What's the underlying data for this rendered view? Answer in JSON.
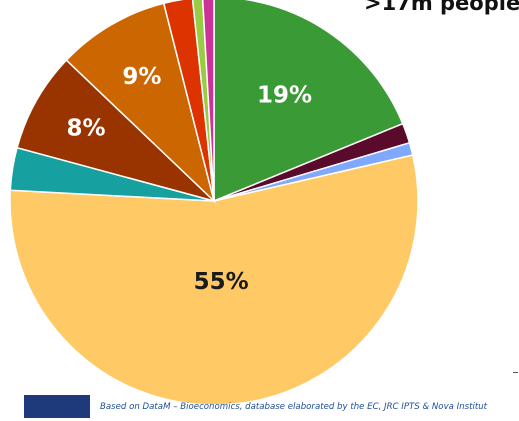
{
  "headline": ">17m people",
  "source_note": "Based on DataM – Bioeconomics, database elaborated by the EC, JRC IPTS & Nova Institut",
  "chart_data": {
    "type": "pie",
    "title": "",
    "start_angle_deg": 0,
    "direction": "clockwise",
    "legend": "none",
    "slices": [
      {
        "value": 19.0,
        "label": "19%",
        "color": "#3a9a35",
        "label_color": "#ffffff"
      },
      {
        "value": 1.6,
        "label": "",
        "color": "#5a0a2a"
      },
      {
        "value": 1.0,
        "label": "",
        "color": "#7fa8ff"
      },
      {
        "value": 55.0,
        "label": "55%",
        "color": "#ffc966",
        "label_color": "#1a1a1a"
      },
      {
        "value": 3.4,
        "label": "",
        "color": "#17a0a0"
      },
      {
        "value": 8.0,
        "label": "8%",
        "color": "#993300",
        "label_color": "#ffffff"
      },
      {
        "value": 9.0,
        "label": "9%",
        "color": "#cc6600",
        "label_color": "#ffffff"
      },
      {
        "value": 2.3,
        "label": "",
        "color": "#dd3300"
      },
      {
        "value": 0.8,
        "label": "",
        "color": "#99cc44"
      },
      {
        "value": 0.9,
        "label": "",
        "color": "#cc3399"
      }
    ]
  },
  "colors": {
    "footer_bar": "#1f3a7a",
    "source_text": "#1f4e99"
  }
}
